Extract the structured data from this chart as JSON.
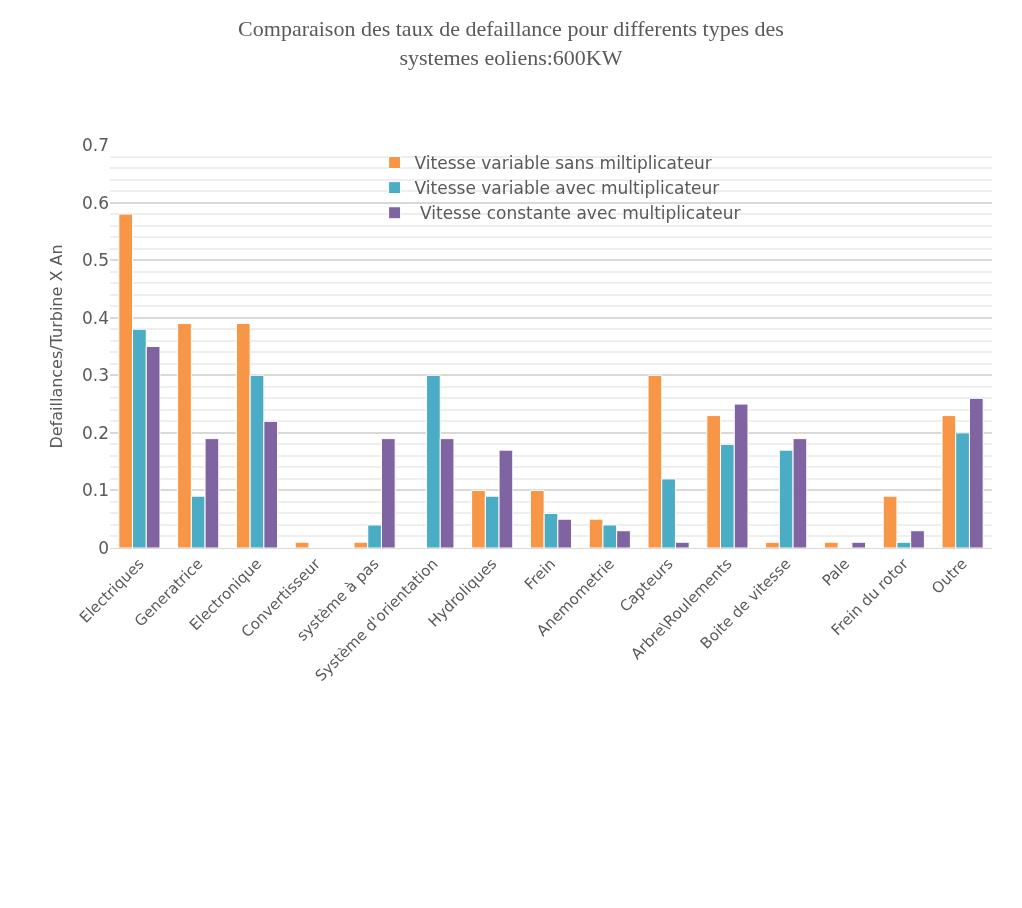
{
  "chart_data": {
    "type": "bar",
    "title": "Comparaison des taux de defaillance pour differents types des systemes eoliens:600KW",
    "ylabel": "Defaillances/Turbine X An",
    "categories": [
      "Electriques",
      "Generatrice",
      "Electronique",
      "Convertisseur",
      "système à pas",
      "Système d'orientation",
      "Hydroliques",
      "Frein",
      "Anemometrie",
      "Capteurs",
      "Arbre\\Roulements",
      "Boite de vitesse",
      "Pale",
      "Frein du rotor",
      "Outre"
    ],
    "series": [
      {
        "name": "Vitesse variable sans miltiplicateur",
        "color": "#f79646",
        "values": [
          0.58,
          0.39,
          0.39,
          0.01,
          0.01,
          null,
          0.1,
          0.1,
          0.05,
          0.3,
          0.23,
          0.01,
          0.01,
          0.09,
          0.23
        ]
      },
      {
        "name": "Vitesse variable avec multiplicateur",
        "color": "#4bacc6",
        "values": [
          0.38,
          0.09,
          0.3,
          null,
          0.04,
          0.3,
          0.09,
          0.06,
          0.04,
          0.12,
          0.18,
          0.17,
          null,
          0.01,
          0.2
        ]
      },
      {
        "name": " Vitesse constante avec multiplicateur",
        "color": "#8064a2",
        "values": [
          0.35,
          0.19,
          0.22,
          null,
          0.19,
          0.19,
          0.17,
          0.05,
          0.03,
          0.01,
          0.25,
          0.19,
          0.01,
          0.03,
          0.26
        ]
      }
    ],
    "ylim": [
      0,
      0.7
    ],
    "yticks": [
      0,
      0.1,
      0.2,
      0.3,
      0.4,
      0.5,
      0.6,
      0.7
    ],
    "grid": "y",
    "legend": "top"
  }
}
